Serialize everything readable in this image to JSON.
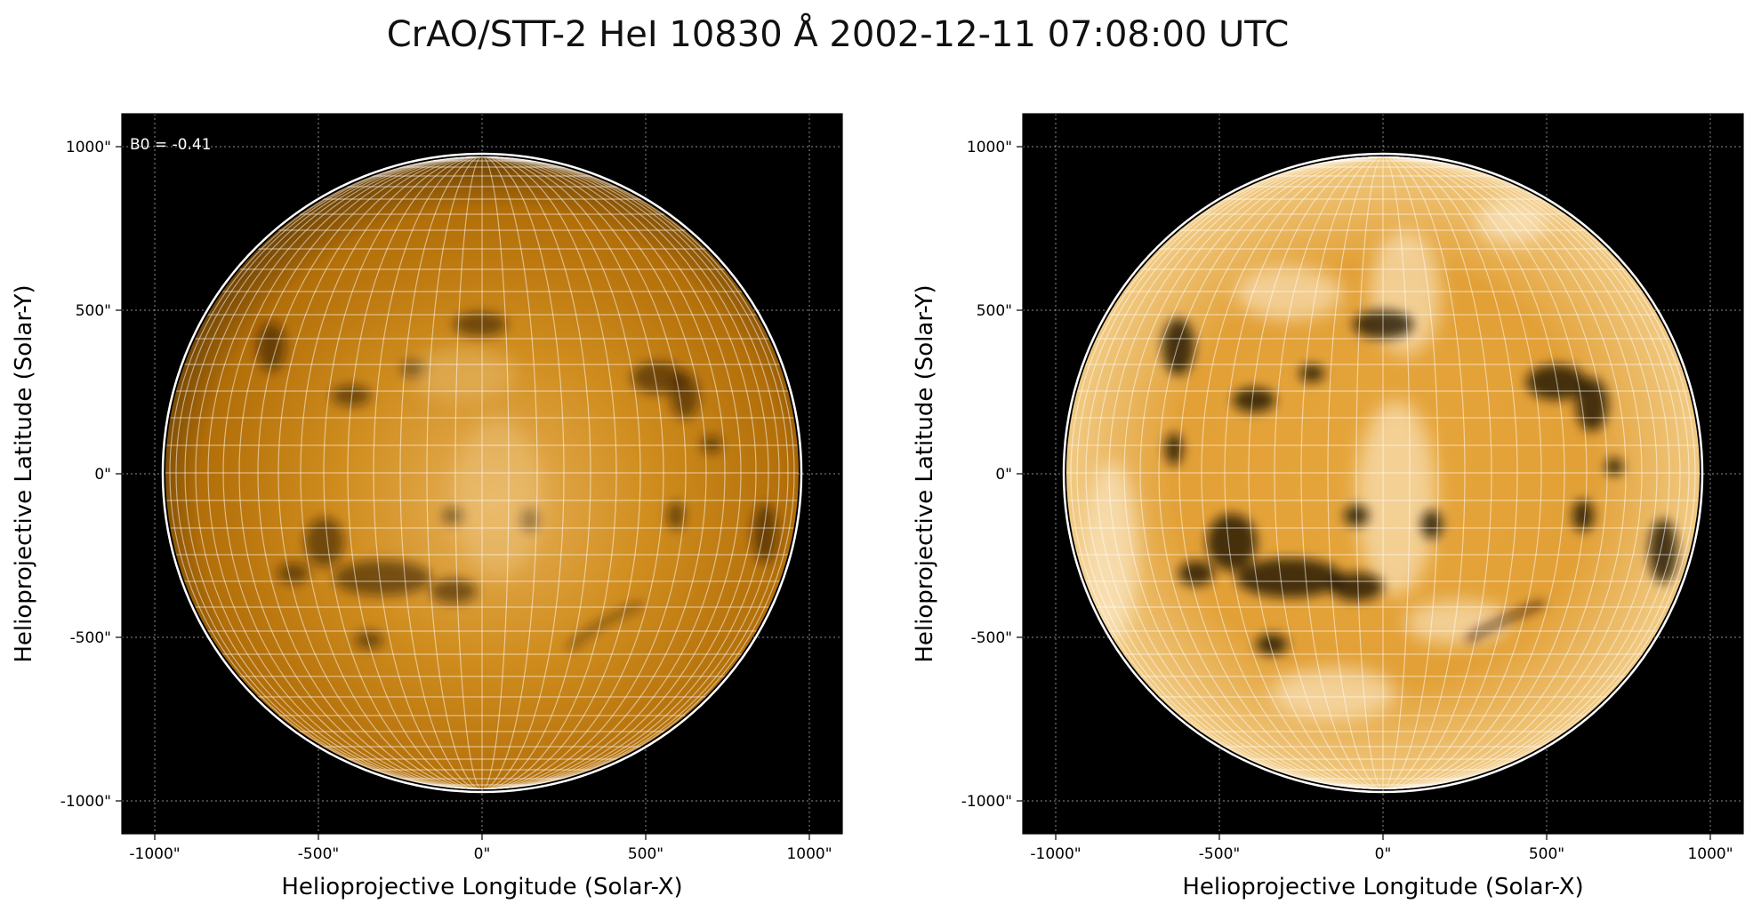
{
  "figure": {
    "title": "CrAO/STT-2 HeI 10830 Å 2002-12-11 07:08:00 UTC"
  },
  "panels": [
    {
      "id": "left",
      "annotation": "B0 = -0.41",
      "xlabel": "Helioprojective Longitude (Solar-X)",
      "ylabel": "Helioprojective Latitude (Solar-Y)",
      "xticks": [
        "-1000\"",
        "-500\"",
        "0\"",
        "500\"",
        "1000\""
      ],
      "yticks": [
        "1000\"",
        "500\"",
        "0\"",
        "-500\"",
        "-1000\""
      ],
      "contrast": "normal"
    },
    {
      "id": "right",
      "annotation": "",
      "xlabel": "Helioprojective Longitude (Solar-X)",
      "ylabel": "Helioprojective Latitude (Solar-Y)",
      "xticks": [
        "-1000\"",
        "-500\"",
        "0\"",
        "500\"",
        "1000\""
      ],
      "yticks": [
        "1000\"",
        "500\"",
        "0\"",
        "-500\"",
        "-1000\""
      ],
      "contrast": "enhanced"
    }
  ],
  "colors": {
    "background": "#000000",
    "disk_center": "#e8b35a",
    "disk_mid": "#c97f0e",
    "disk_limb": "#7a4a06",
    "grid": "#ffffff",
    "limb_circle": "#ffffff"
  }
}
